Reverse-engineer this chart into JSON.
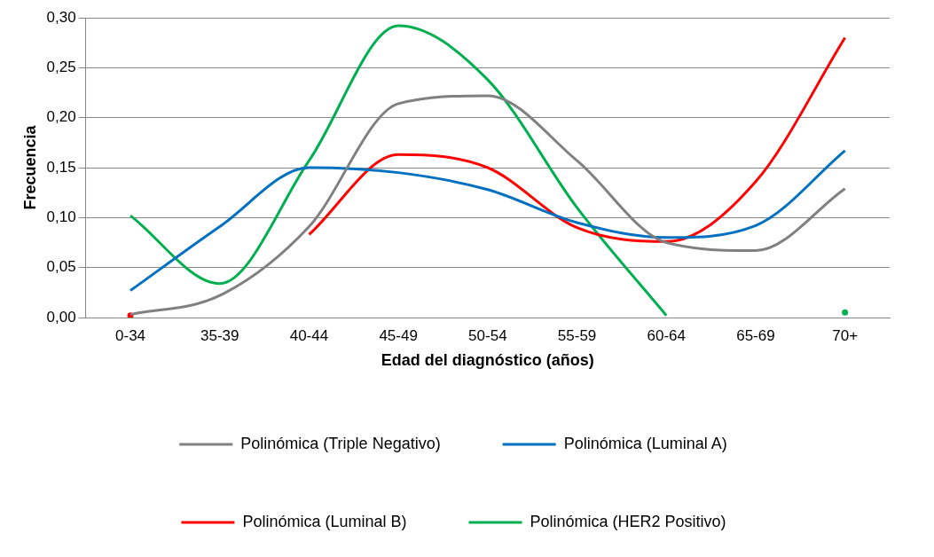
{
  "chart_data": {
    "type": "line",
    "xlabel": "Edad del diagnóstico (años)",
    "ylabel": "Frecuencia",
    "categories": [
      "0-34",
      "35-39",
      "40-44",
      "45-49",
      "50-54",
      "55-59",
      "60-64",
      "65-69",
      "70+"
    ],
    "series": [
      {
        "name": "Polinómica (Triple Negativo)",
        "color": "#808080",
        "values": [
          0.003,
          0.022,
          0.091,
          0.214,
          0.222,
          0.157,
          0.075,
          0.067,
          0.129
        ]
      },
      {
        "name": "Polinómica (Luminal A)",
        "color": "#0070c0",
        "values": [
          0.027,
          0.091,
          0.15,
          0.145,
          0.128,
          0.095,
          0.08,
          0.092,
          0.167
        ]
      },
      {
        "name": "Polinómica (Luminal B)",
        "color": "#ff0000",
        "values": [
          0.002,
          null,
          0.083,
          0.163,
          0.15,
          0.09,
          0.076,
          0.136,
          0.28
        ]
      },
      {
        "name": "Polinómica (HER2 Positivo)",
        "color": "#00b050",
        "values": [
          0.102,
          0.034,
          0.157,
          0.292,
          0.238,
          0.11,
          0.002,
          null,
          0.005
        ]
      }
    ],
    "ylim": [
      0,
      0.3
    ],
    "yticks": [
      {
        "value": 0,
        "label": "0,00"
      },
      {
        "value": 0.05,
        "label": "0,05"
      },
      {
        "value": 0.1,
        "label": "0,10"
      },
      {
        "value": 0.15,
        "label": "0,15"
      },
      {
        "value": 0.2,
        "label": "0,20"
      },
      {
        "value": 0.25,
        "label": "0,25"
      },
      {
        "value": 0.3,
        "label": "0,30"
      }
    ],
    "grid": "y",
    "legend": "bottom",
    "marker": "none",
    "line_style": "solid"
  }
}
